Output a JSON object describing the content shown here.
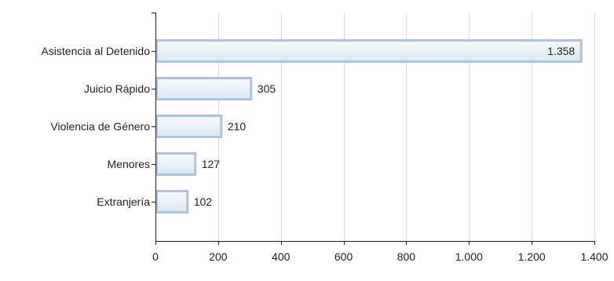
{
  "chart_data": {
    "type": "bar",
    "orientation": "horizontal",
    "title": "",
    "xlabel": "",
    "ylabel": "",
    "categories": [
      "Asistencia al Detenido",
      "Juicio Rápido",
      "Violencia de Género",
      "Menores",
      "Extranjería"
    ],
    "values": [
      1358,
      305,
      210,
      127,
      102
    ],
    "value_labels": [
      "1.358",
      "305",
      "210",
      "127",
      "102"
    ],
    "xlim": [
      0,
      1400
    ],
    "xticks": [
      0,
      200,
      400,
      600,
      800,
      1000,
      1200,
      1400
    ],
    "xtick_labels": [
      "0",
      "200",
      "400",
      "600",
      "800",
      "1.000",
      "1.200",
      "1.400"
    ],
    "grid": "vertical",
    "legend": "none",
    "colors": {
      "bar_fill_top": "#f7fafd",
      "bar_fill_bottom": "#dbe7f3",
      "bar_stroke": "#aec4dc",
      "axis": "#222222",
      "grid": "#dcdcdc",
      "text": "#222222"
    }
  }
}
